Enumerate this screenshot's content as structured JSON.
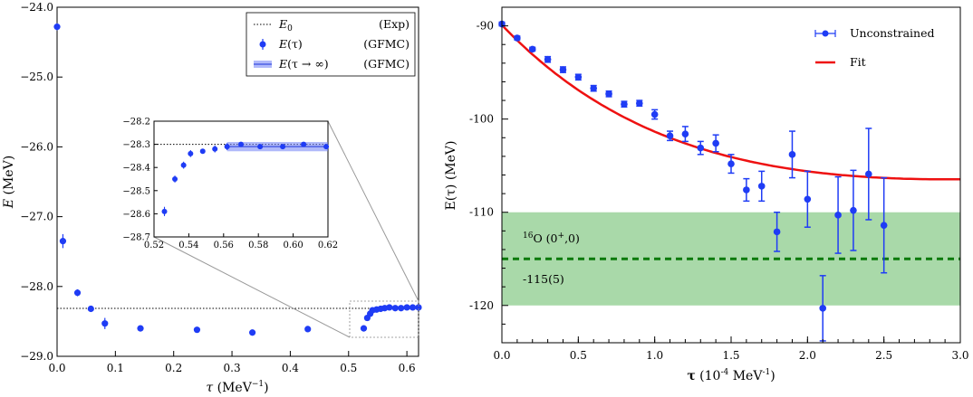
{
  "chart_data": [
    {
      "type": "scatter",
      "panel": "left",
      "xlabel_sym": "τ",
      "xlabel_unit": " (MeV",
      "xlabel_exp": "−1",
      "xlabel_close": ")",
      "ylabel_sym": "E",
      "ylabel_unit": " (MeV)",
      "xlim": [
        0,
        0.62
      ],
      "ylim": [
        -29.0,
        -24.0
      ],
      "xticks": [
        0.0,
        0.1,
        0.2,
        0.3,
        0.4,
        0.5,
        0.6
      ],
      "xtick_labels": [
        "0.0",
        "0.1",
        "0.2",
        "0.3",
        "0.4",
        "0.5",
        "0.6"
      ],
      "yticks": [
        -24.0,
        -25.0,
        -26.0,
        -27.0,
        -28.0,
        -29.0
      ],
      "ytick_labels": [
        "−24.0",
        "−25.0",
        "−26.0",
        "−27.0",
        "−28.0",
        "−29.0"
      ],
      "reference_line": {
        "name": "E0",
        "value": -28.3
      },
      "band": {
        "name": "E(τ → ∞) (GFMC)",
        "value": -28.31,
        "halfwidth": 0.02
      },
      "series": [
        {
          "name": "E(τ) (GFMC)",
          "points": [
            {
              "x": 0.0,
              "y": -24.28,
              "err": 0.05
            },
            {
              "x": 0.01,
              "y": -27.35,
              "err": 0.1
            },
            {
              "x": 0.035,
              "y": -28.09,
              "err": 0.05
            },
            {
              "x": 0.058,
              "y": -28.32,
              "err": 0.04
            },
            {
              "x": 0.082,
              "y": -28.53,
              "err": 0.08
            },
            {
              "x": 0.143,
              "y": -28.6,
              "err": 0.04
            },
            {
              "x": 0.24,
              "y": -28.62,
              "err": 0.04
            },
            {
              "x": 0.335,
              "y": -28.66,
              "err": 0.04
            },
            {
              "x": 0.43,
              "y": -28.61,
              "err": 0.04
            },
            {
              "x": 0.526,
              "y": -28.6,
              "err": 0.04
            },
            {
              "x": 0.532,
              "y": -28.45,
              "err": 0.03
            },
            {
              "x": 0.537,
              "y": -28.39,
              "err": 0.03
            },
            {
              "x": 0.541,
              "y": -28.34,
              "err": 0.03
            },
            {
              "x": 0.548,
              "y": -28.33,
              "err": 0.02
            },
            {
              "x": 0.555,
              "y": -28.32,
              "err": 0.02
            },
            {
              "x": 0.562,
              "y": -28.31,
              "err": 0.02
            },
            {
              "x": 0.57,
              "y": -28.3,
              "err": 0.02
            },
            {
              "x": 0.58,
              "y": -28.31,
              "err": 0.02
            },
            {
              "x": 0.59,
              "y": -28.31,
              "err": 0.02
            },
            {
              "x": 0.6,
              "y": -28.3,
              "err": 0.02
            },
            {
              "x": 0.61,
              "y": -28.3,
              "err": 0.02
            },
            {
              "x": 0.62,
              "y": -28.3,
              "err": 0.02
            }
          ]
        }
      ],
      "legend": {
        "placement": "top-right",
        "entries": [
          {
            "label_sym": "E",
            "label_sub": "0",
            "label_rest": "",
            "tag": "(Exp)"
          },
          {
            "label_sym": "E",
            "label_sub": "",
            "label_rest": "(τ)",
            "tag": "(GFMC)"
          },
          {
            "label_sym": "E",
            "label_sub": "",
            "label_rest": "(τ → ∞)",
            "tag": "(GFMC)"
          }
        ]
      },
      "inset": {
        "xlim": [
          0.52,
          0.62
        ],
        "ylim": [
          -28.7,
          -28.2
        ],
        "xticks": [
          0.52,
          0.54,
          0.56,
          0.58,
          0.6,
          0.62
        ],
        "xtick_labels": [
          "0.52",
          "0.54",
          "0.56",
          "0.58",
          "0.60",
          "0.62"
        ],
        "yticks": [
          -28.2,
          -28.3,
          -28.4,
          -28.5,
          -28.6,
          -28.7
        ],
        "ytick_labels": [
          "−28.2",
          "−28.3",
          "−28.4",
          "−28.5",
          "−28.6",
          "−28.7"
        ],
        "points": [
          {
            "x": 0.526,
            "y": -28.59,
            "err": 0.02
          },
          {
            "x": 0.532,
            "y": -28.45,
            "err": 0.015
          },
          {
            "x": 0.537,
            "y": -28.39,
            "err": 0.015
          },
          {
            "x": 0.541,
            "y": -28.34,
            "err": 0.015
          },
          {
            "x": 0.548,
            "y": -28.33,
            "err": 0.01
          },
          {
            "x": 0.555,
            "y": -28.32,
            "err": 0.015
          },
          {
            "x": 0.562,
            "y": -28.31,
            "err": 0.015
          },
          {
            "x": 0.57,
            "y": -28.3,
            "err": 0.01
          },
          {
            "x": 0.581,
            "y": -28.31,
            "err": 0.008
          },
          {
            "x": 0.594,
            "y": -28.31,
            "err": 0.01
          },
          {
            "x": 0.606,
            "y": -28.3,
            "err": 0.008
          },
          {
            "x": 0.619,
            "y": -28.31,
            "err": 0.008
          }
        ],
        "band": {
          "value": -28.31,
          "halfwidth": 0.02,
          "xstart": 0.562
        },
        "reference_line": {
          "value": -28.3
        }
      },
      "colors": {
        "points": "#1f3cf5",
        "band": "#6f7ff5",
        "band_line": "#3a4fe0"
      }
    },
    {
      "type": "scatter",
      "panel": "right",
      "xlabel_sym": "τ",
      "xlabel_unit": " (10",
      "xlabel_exp1": "-4",
      "xlabel_mid": " MeV",
      "xlabel_exp2": "-1",
      "xlabel_close": ")",
      "ylabel": "E(τ) (MeV)",
      "xlim": [
        0.0,
        3.0
      ],
      "ylim": [
        -124,
        -88
      ],
      "xticks": [
        0.0,
        0.5,
        1.0,
        1.5,
        2.0,
        2.5,
        3.0
      ],
      "xtick_labels": [
        "0.0",
        "0.5",
        "1.0",
        "1.5",
        "2.0",
        "2.5",
        "3.0"
      ],
      "yticks": [
        -90,
        -100,
        -110,
        -120
      ],
      "ytick_labels": [
        "-90",
        "-100",
        "-110",
        "-120"
      ],
      "series": [
        {
          "name": "Unconstrained",
          "points": [
            {
              "x": 0.0,
              "y": -89.8,
              "err": 0.2
            },
            {
              "x": 0.1,
              "y": -91.3,
              "err": 0.2
            },
            {
              "x": 0.2,
              "y": -92.5,
              "err": 0.2
            },
            {
              "x": 0.3,
              "y": -93.6,
              "err": 0.3
            },
            {
              "x": 0.4,
              "y": -94.7,
              "err": 0.3
            },
            {
              "x": 0.5,
              "y": -95.5,
              "err": 0.3
            },
            {
              "x": 0.6,
              "y": -96.7,
              "err": 0.3
            },
            {
              "x": 0.7,
              "y": -97.3,
              "err": 0.3
            },
            {
              "x": 0.8,
              "y": -98.4,
              "err": 0.3
            },
            {
              "x": 0.9,
              "y": -98.3,
              "err": 0.3
            },
            {
              "x": 1.0,
              "y": -99.5,
              "err": 0.5
            },
            {
              "x": 1.1,
              "y": -101.8,
              "err": 0.5
            },
            {
              "x": 1.2,
              "y": -101.6,
              "err": 0.8
            },
            {
              "x": 1.3,
              "y": -103.1,
              "err": 0.7
            },
            {
              "x": 1.4,
              "y": -102.6,
              "err": 0.9
            },
            {
              "x": 1.5,
              "y": -104.8,
              "err": 1.0
            },
            {
              "x": 1.6,
              "y": -107.6,
              "err": 1.2
            },
            {
              "x": 1.7,
              "y": -107.2,
              "err": 1.6
            },
            {
              "x": 1.8,
              "y": -112.1,
              "err": 2.1
            },
            {
              "x": 1.9,
              "y": -103.8,
              "err": 2.5
            },
            {
              "x": 2.0,
              "y": -108.6,
              "err": 3.0
            },
            {
              "x": 2.1,
              "y": -120.3,
              "err": 3.5
            },
            {
              "x": 2.2,
              "y": -110.3,
              "err": 4.1
            },
            {
              "x": 2.3,
              "y": -109.8,
              "err": 4.3
            },
            {
              "x": 2.4,
              "y": -105.9,
              "err": 4.9
            },
            {
              "x": 2.5,
              "y": -111.4,
              "err": 5.1
            }
          ]
        }
      ],
      "fit": {
        "name": "Fit",
        "formula": "-84.1 - 5.8*exp(-x/1.336) - 0.0*x - 25.9*(1-exp(-x/1.336))"
      },
      "band": {
        "center": -115,
        "halfwidth": 5,
        "label_pre": "16",
        "label_main": "O (0",
        "label_sup": "+",
        "label_post": ",0)",
        "value_label": "-115(5)"
      },
      "legend": {
        "placement": "top-right",
        "entries": [
          "Unconstrained",
          "Fit"
        ]
      },
      "colors": {
        "points": "#1f3cf5",
        "fit": "#ee1111",
        "band": "#a9d9a9",
        "dash": "#0b7a0b"
      }
    }
  ]
}
